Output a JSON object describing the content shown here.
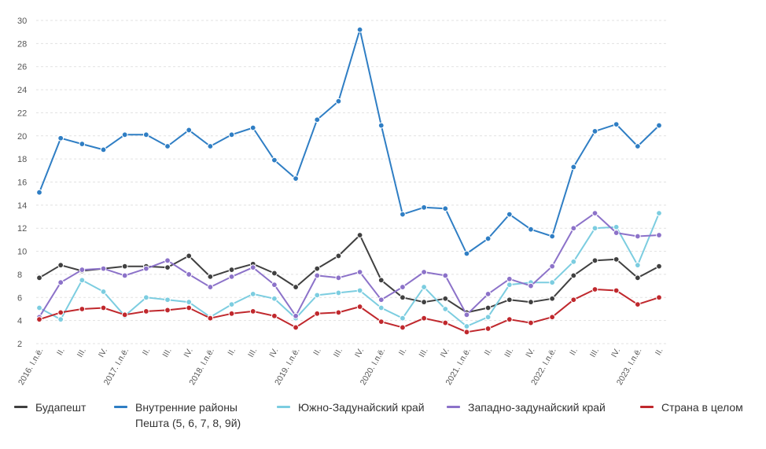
{
  "chart_data": {
    "type": "line",
    "title": "",
    "xlabel": "",
    "ylabel": "",
    "ylim": [
      2,
      30
    ],
    "yticks": [
      2,
      4,
      6,
      8,
      10,
      12,
      14,
      16,
      18,
      20,
      22,
      24,
      26,
      28,
      30
    ],
    "grid": true,
    "legend_position": "bottom",
    "x": [
      "2016. I.п.ё.",
      "II.",
      "III.",
      "IV.",
      "2017. I.п.ё.",
      "II.",
      "III.",
      "IV.",
      "2018. I.п.ё.",
      "II.",
      "III.",
      "IV.",
      "2019. I.п.ё.",
      "II.",
      "III.",
      "IV.",
      "2020. I.п.ё.",
      "II.",
      "III.",
      "IV.",
      "2021. I.п.ё.",
      "II.",
      "III.",
      "IV.",
      "2022. I.п.ё.",
      "II.",
      "III.",
      "IV.",
      "2023. I.п.ё.",
      "II."
    ],
    "series": [
      {
        "name": "Будапешт",
        "color": "#404040",
        "values": [
          7.7,
          8.8,
          8.3,
          8.5,
          8.7,
          8.7,
          8.6,
          9.6,
          7.8,
          8.4,
          8.9,
          8.1,
          6.9,
          8.5,
          9.6,
          11.4,
          7.5,
          6.0,
          5.6,
          5.9,
          4.7,
          5.1,
          5.8,
          5.6,
          5.9,
          7.9,
          9.2,
          9.3,
          7.7,
          8.7
        ]
      },
      {
        "name": "Внутренние районы Пешта (5, 6, 7, 8, 9й)",
        "color": "#2f7ec4",
        "values": [
          15.1,
          19.8,
          19.3,
          18.8,
          20.1,
          20.1,
          19.1,
          20.5,
          19.1,
          20.1,
          20.7,
          17.9,
          16.3,
          21.4,
          23.0,
          29.2,
          20.9,
          13.2,
          13.8,
          13.7,
          9.8,
          11.1,
          13.2,
          11.9,
          11.3,
          17.3,
          20.4,
          21.0,
          19.1,
          20.9
        ]
      },
      {
        "name": "Южно-Задунайский край",
        "color": "#7ccde0",
        "values": [
          5.1,
          4.1,
          7.5,
          6.5,
          4.4,
          6.0,
          5.8,
          5.6,
          4.3,
          5.4,
          6.3,
          5.9,
          4.2,
          6.2,
          6.4,
          6.6,
          5.1,
          4.2,
          6.9,
          5.0,
          3.5,
          4.3,
          7.1,
          7.3,
          7.3,
          9.1,
          12.0,
          12.1,
          8.8,
          13.3
        ]
      },
      {
        "name": "Западно-задунайский край",
        "color": "#8c72c9",
        "values": [
          4.3,
          7.3,
          8.4,
          8.5,
          7.9,
          8.5,
          9.2,
          8.0,
          6.9,
          7.8,
          8.6,
          7.1,
          4.4,
          7.9,
          7.7,
          8.2,
          5.8,
          6.9,
          8.2,
          7.9,
          4.5,
          6.3,
          7.6,
          7.0,
          8.7,
          12.0,
          13.3,
          11.6,
          11.3,
          11.4
        ]
      },
      {
        "name": "Страна в целом",
        "color": "#c0282d",
        "values": [
          4.1,
          4.7,
          5.0,
          5.1,
          4.5,
          4.8,
          4.9,
          5.1,
          4.2,
          4.6,
          4.8,
          4.4,
          3.4,
          4.6,
          4.7,
          5.2,
          3.9,
          3.4,
          4.2,
          3.8,
          3.0,
          3.3,
          4.1,
          3.8,
          4.3,
          5.8,
          6.7,
          6.6,
          5.4,
          6.0
        ]
      }
    ]
  },
  "legend": [
    {
      "label": "Будапешт",
      "color": "#404040"
    },
    {
      "label": "Внутренние районы",
      "label2": "Пешта (5, 6, 7, 8, 9й)",
      "color": "#2f7ec4"
    },
    {
      "label": "Южно-Задунайский край",
      "color": "#7ccde0"
    },
    {
      "label": "Западно-задунайский край",
      "color": "#8c72c9"
    },
    {
      "label": "Страна в целом",
      "color": "#c0282d"
    }
  ]
}
